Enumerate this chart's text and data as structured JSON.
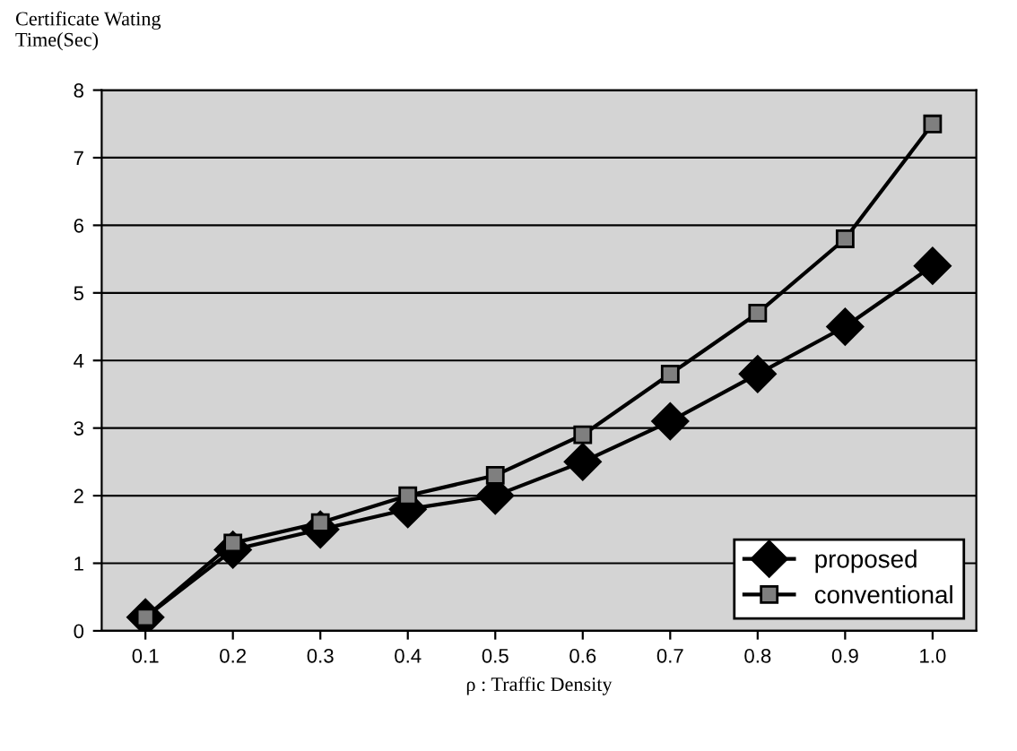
{
  "chart_data": {
    "type": "line",
    "ylabel": "Certificate Wating\nTime(Sec)",
    "xlabel": "ρ : Traffic Density",
    "categories": [
      "0.1",
      "0.2",
      "0.3",
      "0.4",
      "0.5",
      "0.6",
      "0.7",
      "0.8",
      "0.9",
      "1.0"
    ],
    "series": [
      {
        "name": "proposed",
        "color": "#000000",
        "marker": "diamond",
        "values": [
          0.2,
          1.2,
          1.5,
          1.8,
          2.0,
          2.5,
          3.1,
          3.8,
          4.5,
          5.4
        ]
      },
      {
        "name": "conventional",
        "color": "#7f7f7f",
        "marker": "square",
        "values": [
          0.2,
          1.3,
          1.6,
          2.0,
          2.3,
          2.9,
          3.8,
          4.7,
          5.8,
          7.5
        ]
      }
    ],
    "ylim": [
      0,
      8
    ],
    "yticks": [
      0,
      1,
      2,
      3,
      4,
      5,
      6,
      7,
      8
    ],
    "grid": "y",
    "legend": "bottom right",
    "line_style": "solid"
  }
}
